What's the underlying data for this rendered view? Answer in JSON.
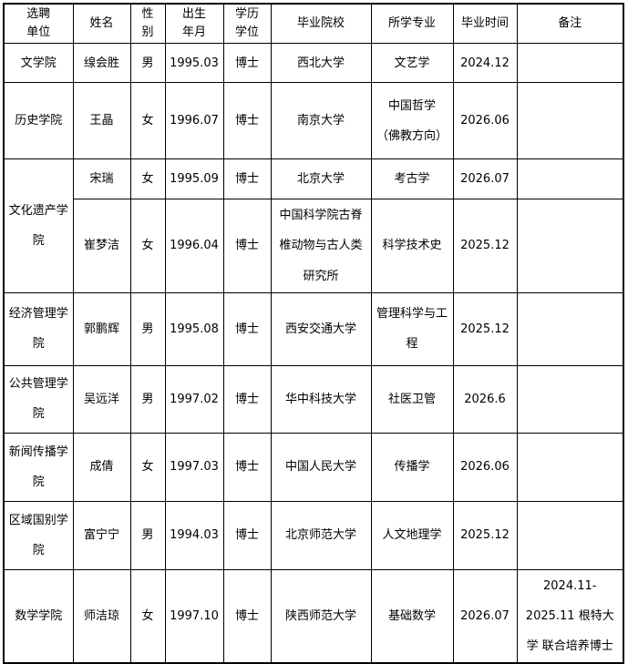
{
  "table": {
    "headers": [
      "选聘\n单位",
      "姓名",
      "性\n别",
      "出生\n年月",
      "学历\n学位",
      "毕业院校",
      "所学专业",
      "毕业时间",
      "备注"
    ],
    "rows": [
      {
        "cells": [
          {
            "text": "文学院"
          },
          {
            "text": "缐会胜"
          },
          {
            "text": "男"
          },
          {
            "text": "1995.03"
          },
          {
            "text": "博士"
          },
          {
            "text": "西北大学"
          },
          {
            "text": "文艺学"
          },
          {
            "text": "2024.12"
          },
          {
            "text": ""
          }
        ]
      },
      {
        "cells": [
          {
            "text": "历史学院"
          },
          {
            "text": "王晶"
          },
          {
            "text": "女"
          },
          {
            "text": "1996.07"
          },
          {
            "text": "博士"
          },
          {
            "text": "南京大学"
          },
          {
            "text": "中国哲学\n（佛教方向）"
          },
          {
            "text": "2026.06"
          },
          {
            "text": ""
          }
        ]
      },
      {
        "cells": [
          {
            "text": "文化遗产学院",
            "rowspan": 2
          },
          {
            "text": "宋瑞"
          },
          {
            "text": "女"
          },
          {
            "text": "1995.09"
          },
          {
            "text": "博士"
          },
          {
            "text": "北京大学"
          },
          {
            "text": "考古学"
          },
          {
            "text": "2026.07"
          },
          {
            "text": ""
          }
        ]
      },
      {
        "cells": [
          {
            "text": "崔梦洁"
          },
          {
            "text": "女"
          },
          {
            "text": "1996.04"
          },
          {
            "text": "博士"
          },
          {
            "text": "中国科学院古脊椎动物与古人类研究所"
          },
          {
            "text": "科学技术史"
          },
          {
            "text": "2025.12"
          },
          {
            "text": ""
          }
        ]
      },
      {
        "cells": [
          {
            "text": "经济管理学院"
          },
          {
            "text": "郭鹏辉"
          },
          {
            "text": "男"
          },
          {
            "text": "1995.08"
          },
          {
            "text": "博士"
          },
          {
            "text": "西安交通大学"
          },
          {
            "text": "管理科学与工程"
          },
          {
            "text": "2025.12"
          },
          {
            "text": ""
          }
        ]
      },
      {
        "cells": [
          {
            "text": "公共管理学院"
          },
          {
            "text": "吴远洋"
          },
          {
            "text": "男"
          },
          {
            "text": "1997.02"
          },
          {
            "text": "博士"
          },
          {
            "text": "华中科技大学"
          },
          {
            "text": "社医卫管"
          },
          {
            "text": "2026.6"
          },
          {
            "text": ""
          }
        ]
      },
      {
        "cells": [
          {
            "text": "新闻传播学院"
          },
          {
            "text": "成倩"
          },
          {
            "text": "女"
          },
          {
            "text": "1997.03"
          },
          {
            "text": "博士"
          },
          {
            "text": "中国人民大学"
          },
          {
            "text": "传播学"
          },
          {
            "text": "2026.06"
          },
          {
            "text": ""
          }
        ]
      },
      {
        "cells": [
          {
            "text": "区域国别学院"
          },
          {
            "text": "富宁宁"
          },
          {
            "text": "男"
          },
          {
            "text": "1994.03"
          },
          {
            "text": "博士"
          },
          {
            "text": "北京师范大学"
          },
          {
            "text": "人文地理学"
          },
          {
            "text": "2025.12"
          },
          {
            "text": ""
          }
        ]
      },
      {
        "cells": [
          {
            "text": "数学学院"
          },
          {
            "text": "师洁琼"
          },
          {
            "text": "女"
          },
          {
            "text": "1997.10"
          },
          {
            "text": "博士"
          },
          {
            "text": "陕西师范大学"
          },
          {
            "text": "基础数学"
          },
          {
            "text": "2026.07"
          },
          {
            "text": "2024.11-2025.11 根特大学 联合培养博士"
          }
        ]
      }
    ]
  }
}
